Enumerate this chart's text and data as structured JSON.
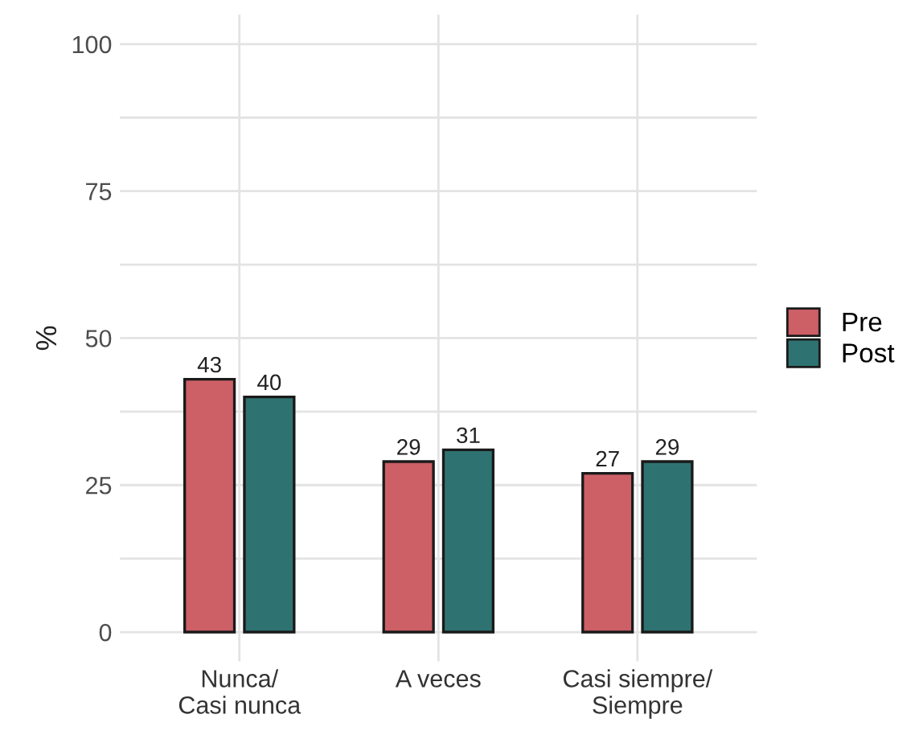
{
  "chart_data": {
    "type": "bar",
    "ylabel": "%",
    "categories": [
      "Nunca/\nCasi nunca",
      "A veces",
      "Casi siempre/\nSiempre"
    ],
    "series": [
      {
        "name": "Pre",
        "color": "#cd5f66",
        "values": [
          43,
          29,
          27
        ]
      },
      {
        "name": "Post",
        "color": "#2e7371",
        "values": [
          40,
          31,
          29
        ]
      }
    ],
    "ylim": [
      -5,
      105
    ],
    "yticks": [
      0,
      {
        "value": 12.5,
        "label": null
      },
      25,
      {
        "value": 37.5,
        "label": null
      },
      50,
      {
        "value": 62.5,
        "label": null
      },
      75,
      {
        "value": 87.5,
        "label": null
      },
      100
    ],
    "grid": true,
    "legend": "right",
    "data_labels": true
  }
}
